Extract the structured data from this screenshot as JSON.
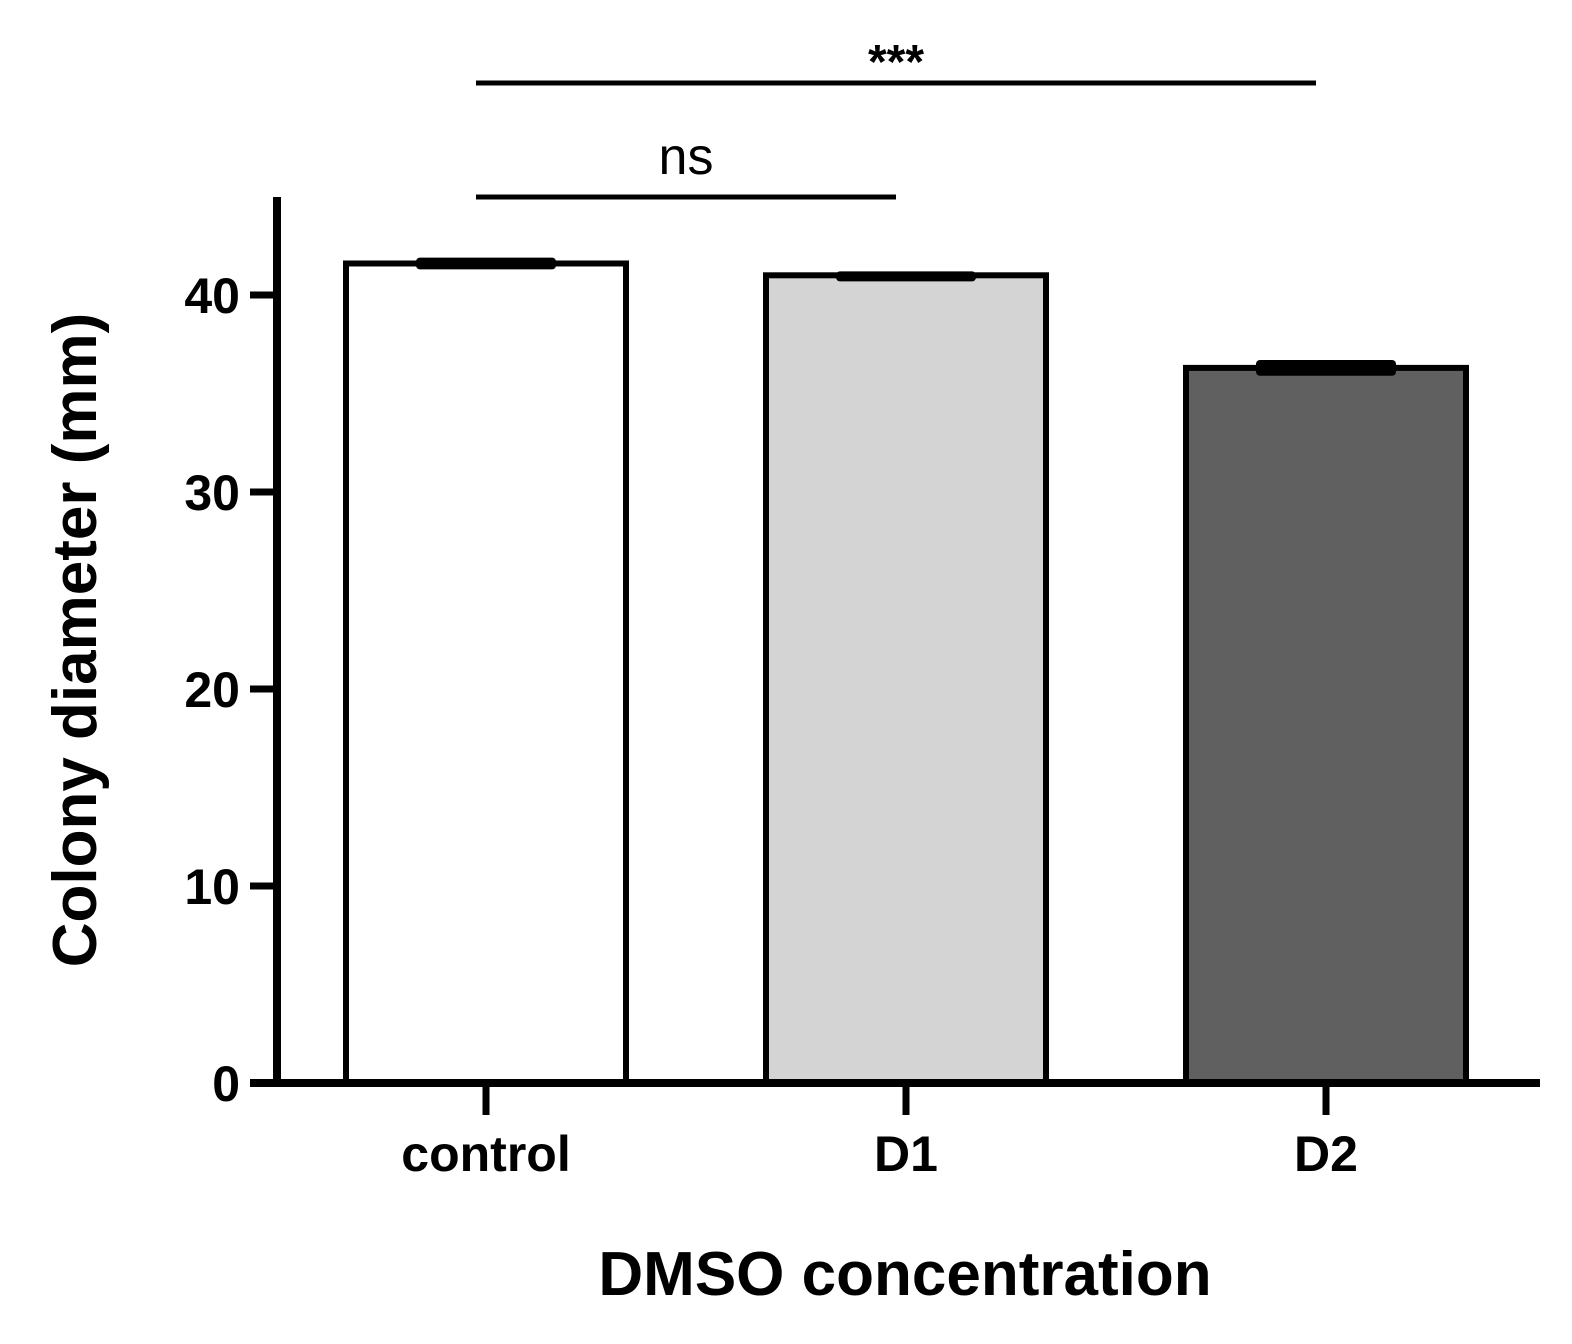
{
  "chart_data": {
    "type": "bar",
    "categories": [
      "control",
      "D1",
      "D2"
    ],
    "values": [
      41.6,
      41.0,
      36.3
    ],
    "errors": [
      0.3,
      0.2,
      0.4
    ],
    "colors": [
      "#ffffff",
      "#d4d4d4",
      "#606060"
    ],
    "xlabel": "DMSO concentration",
    "ylabel": "Colony diameter (mm)",
    "ylim": [
      0,
      45
    ],
    "yticks": [
      0,
      10,
      20,
      30,
      40
    ],
    "grid": false,
    "significance": [
      {
        "from": 0,
        "to": 1,
        "label": "ns"
      },
      {
        "from": 0,
        "to": 2,
        "label": "***"
      }
    ]
  }
}
